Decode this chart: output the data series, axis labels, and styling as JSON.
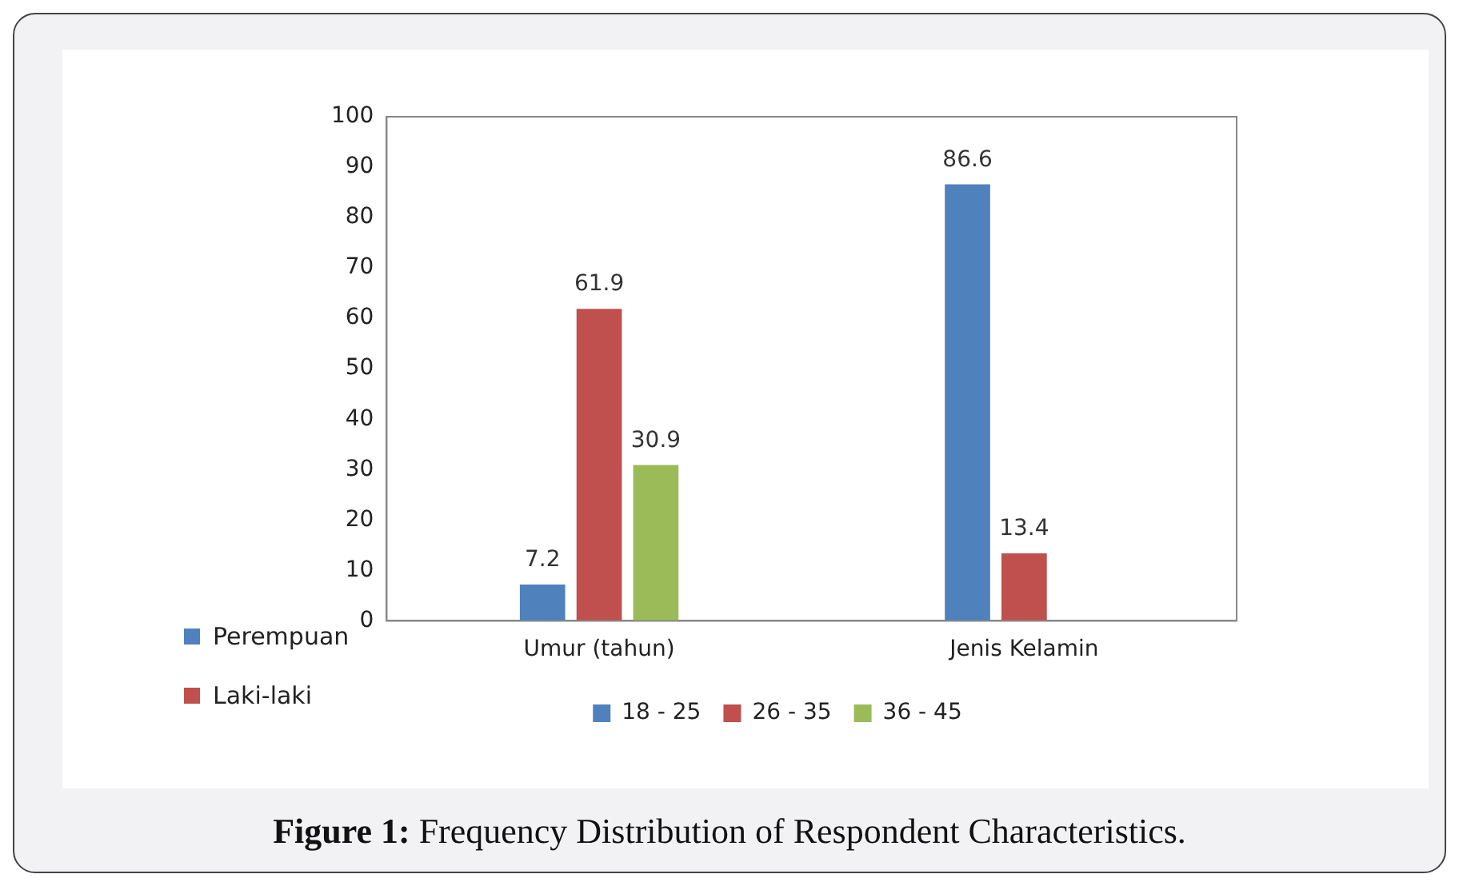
{
  "chart_data": {
    "type": "bar",
    "title": "Figure 1: Frequency Distribution of Respondent Characteristics.",
    "categories": [
      "Umur (tahun)",
      "Jenis Kelamin"
    ],
    "series": [
      {
        "name": "18 - 25",
        "color": "#4f81bd",
        "values": [
          7.2,
          86.6
        ]
      },
      {
        "name": "26 - 35",
        "color": "#c0504d",
        "values": [
          61.9,
          13.4
        ]
      },
      {
        "name": "36 - 45",
        "color": "#9bbb59",
        "values": [
          30.9,
          null
        ]
      }
    ],
    "annotations": [
      "Perempuan",
      "Laki-laki"
    ],
    "ylim": [
      0,
      100
    ],
    "yticks": [
      0,
      10,
      20,
      30,
      40,
      50,
      60,
      70,
      80,
      90,
      100
    ],
    "grid": false,
    "legend": "bottom",
    "data_labels": true
  }
}
